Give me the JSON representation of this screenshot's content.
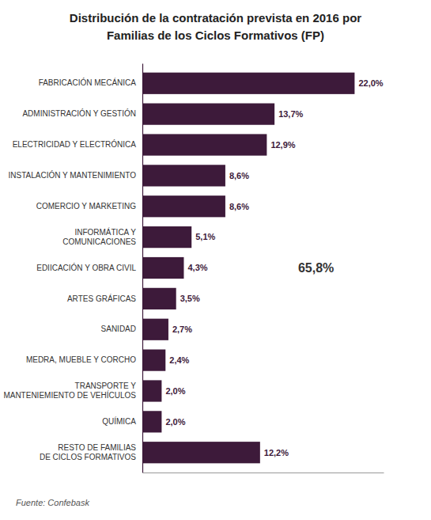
{
  "chart_data": {
    "type": "bar",
    "orientation": "horizontal",
    "title": "Distribución de la contratación prevista en 2016 por",
    "subtitle": "Familias de los Ciclos Formativos (FP)",
    "categories": [
      "FABRICACIÓN MECÁNICA",
      "ADMINISTRACIÓN Y GESTIÓN",
      "ELECTRICIDAD Y ELECTRÓNICA",
      "INSTALACIÓN Y MANTENIMIENTO",
      "COMERCIO Y MARKETING",
      "INFORMÁTICA Y\nCOMUNICACIONES",
      "EDIICACIÓN Y OBRA CIVIL",
      "ARTES GRÁFICAS",
      "SANIDAD",
      "MEDRA, MUEBLE Y CORCHO",
      "TRANSPORTE Y\nMANTENIEMIENTO DE VEHÍCULOS",
      "QUÍMICA",
      "RESTO DE FAMILIAS\nDE CICLOS FORMATIVOS"
    ],
    "values": [
      22.0,
      13.7,
      12.9,
      8.6,
      8.6,
      5.1,
      4.3,
      3.5,
      2.7,
      2.4,
      2.0,
      2.0,
      12.2
    ],
    "value_labels": [
      "22,0%",
      "13,7%",
      "12,9%",
      "8,6%",
      "8,6%",
      "5,1%",
      "4,3%",
      "3,5%",
      "2,7%",
      "2,4%",
      "2,0%",
      "2,0%",
      "12,2%"
    ],
    "data_labels": true,
    "color": "#3d1a3a",
    "xlim": [
      0,
      25
    ],
    "tick_labels": false,
    "grid": false,
    "annotations": [
      "65,8%"
    ],
    "source": "Fuente: Confebask"
  }
}
